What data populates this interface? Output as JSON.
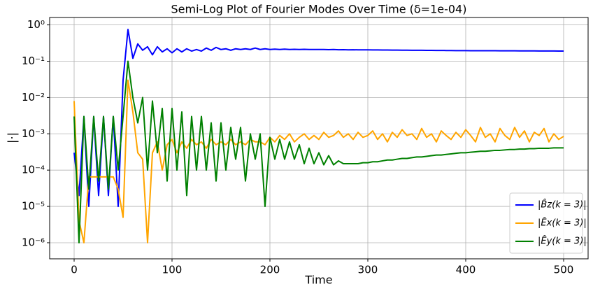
{
  "chart_data": {
    "type": "line",
    "title": "Semi-Log Plot of Fourier Modes Over Time (δ=1e-04)",
    "x_label": "Time",
    "y_label": "|·|",
    "log_y": true,
    "grid": true,
    "legend": "lower right",
    "xlim": [
      -25,
      525
    ],
    "xticks": [
      0,
      100,
      200,
      300,
      400,
      500
    ],
    "ylim": [
      3.6e-07,
      1.6
    ],
    "yticks": [
      {
        "value": 1,
        "label": "10⁰"
      },
      {
        "value": 0.1,
        "label": "10⁻¹"
      },
      {
        "value": 0.01,
        "label": "10⁻²"
      },
      {
        "value": 0.001,
        "label": "10⁻³"
      },
      {
        "value": 0.0001,
        "label": "10⁻⁴"
      },
      {
        "value": 1e-05,
        "label": "10⁻⁵"
      },
      {
        "value": 1e-06,
        "label": "10⁻⁶"
      }
    ],
    "x": [
      0,
      5,
      10,
      15,
      20,
      25,
      30,
      35,
      40,
      45,
      50,
      55,
      60,
      65,
      70,
      75,
      80,
      85,
      90,
      95,
      100,
      105,
      110,
      115,
      120,
      125,
      130,
      135,
      140,
      145,
      150,
      155,
      160,
      165,
      170,
      175,
      180,
      185,
      190,
      195,
      200,
      205,
      210,
      215,
      220,
      225,
      230,
      235,
      240,
      245,
      250,
      255,
      260,
      265,
      270,
      275,
      280,
      285,
      290,
      295,
      300,
      305,
      310,
      315,
      320,
      325,
      330,
      335,
      340,
      345,
      350,
      355,
      360,
      365,
      370,
      375,
      380,
      385,
      390,
      395,
      400,
      405,
      410,
      415,
      420,
      425,
      430,
      435,
      440,
      445,
      450,
      455,
      460,
      465,
      470,
      475,
      480,
      485,
      490,
      495,
      500
    ],
    "series": [
      {
        "name": "|B̂z(k = 3)|",
        "color": "#0000ff",
        "values": [
          0.0003,
          2e-05,
          0.003,
          1e-05,
          0.003,
          2e-05,
          0.003,
          2e-05,
          0.003,
          1e-05,
          0.03,
          0.75,
          0.12,
          0.3,
          0.2,
          0.25,
          0.15,
          0.25,
          0.18,
          0.22,
          0.17,
          0.22,
          0.18,
          0.22,
          0.19,
          0.21,
          0.19,
          0.23,
          0.2,
          0.24,
          0.21,
          0.22,
          0.2,
          0.22,
          0.21,
          0.22,
          0.21,
          0.23,
          0.21,
          0.22,
          0.21,
          0.215,
          0.21,
          0.215,
          0.21,
          0.212,
          0.21,
          0.212,
          0.21,
          0.21,
          0.21,
          0.21,
          0.208,
          0.21,
          0.207,
          0.208,
          0.206,
          0.207,
          0.205,
          0.206,
          0.205,
          0.204,
          0.204,
          0.203,
          0.203,
          0.202,
          0.202,
          0.201,
          0.201,
          0.2,
          0.2,
          0.2,
          0.199,
          0.199,
          0.198,
          0.198,
          0.197,
          0.197,
          0.196,
          0.196,
          0.196,
          0.195,
          0.195,
          0.195,
          0.194,
          0.194,
          0.194,
          0.193,
          0.193,
          0.193,
          0.193,
          0.192,
          0.192,
          0.192,
          0.192,
          0.191,
          0.191,
          0.191,
          0.191,
          0.19,
          0.19
        ]
      },
      {
        "name": "|Êx(k = 3)|",
        "color": "#ffa500",
        "values": [
          0.008,
          4e-06,
          1e-06,
          6.5e-05,
          6.5e-05,
          6.5e-05,
          6.5e-05,
          6.5e-05,
          6.5e-05,
          3e-05,
          5e-06,
          0.03,
          0.004,
          0.0003,
          0.0002,
          1e-06,
          0.0003,
          0.0006,
          0.0001,
          0.0005,
          0.0007,
          0.0003,
          0.0006,
          0.0004,
          0.0007,
          0.0005,
          0.0006,
          0.0004,
          0.0007,
          0.0005,
          0.0006,
          0.0005,
          0.0007,
          0.0005,
          0.0006,
          0.0005,
          0.0007,
          0.0006,
          0.0006,
          0.0005,
          0.0008,
          0.0006,
          0.0009,
          0.0007,
          0.001,
          0.0006,
          0.0008,
          0.001,
          0.0007,
          0.0009,
          0.0007,
          0.0011,
          0.0008,
          0.0009,
          0.0012,
          0.0008,
          0.001,
          0.0007,
          0.0011,
          0.0008,
          0.0009,
          0.0012,
          0.0007,
          0.001,
          0.0006,
          0.0011,
          0.0008,
          0.0013,
          0.0009,
          0.001,
          0.0007,
          0.0014,
          0.0008,
          0.001,
          0.0006,
          0.0012,
          0.0009,
          0.0007,
          0.0011,
          0.0008,
          0.0013,
          0.0009,
          0.0006,
          0.0015,
          0.0008,
          0.001,
          0.0006,
          0.0014,
          0.0009,
          0.0007,
          0.0015,
          0.0008,
          0.0012,
          0.0006,
          0.0011,
          0.0009,
          0.0014,
          0.0006,
          0.001,
          0.0007,
          0.00085
        ]
      },
      {
        "name": "|Êy(k = 3)|",
        "color": "#008000",
        "values": [
          0.003,
          1e-06,
          0.003,
          3e-05,
          0.003,
          5e-05,
          0.003,
          3e-05,
          0.003,
          0.0001,
          0.003,
          0.1,
          0.01,
          0.002,
          0.01,
          0.0001,
          0.008,
          0.0003,
          0.005,
          5e-05,
          0.005,
          0.0001,
          0.004,
          2e-05,
          0.003,
          0.0001,
          0.003,
          0.0001,
          0.002,
          5e-05,
          0.002,
          0.0001,
          0.0015,
          0.0002,
          0.0015,
          5e-05,
          0.001,
          0.0002,
          0.001,
          1e-05,
          0.0008,
          0.0002,
          0.0007,
          0.0002,
          0.0006,
          0.0002,
          0.0005,
          0.00015,
          0.0004,
          0.00015,
          0.0003,
          0.00014,
          0.00025,
          0.00014,
          0.00018,
          0.00015,
          0.00015,
          0.00015,
          0.00015,
          0.00016,
          0.00016,
          0.00017,
          0.00017,
          0.00018,
          0.00019,
          0.00019,
          0.0002,
          0.00021,
          0.00021,
          0.00022,
          0.00023,
          0.00023,
          0.00024,
          0.00025,
          0.00026,
          0.00026,
          0.00027,
          0.00028,
          0.00029,
          0.0003,
          0.0003,
          0.00031,
          0.00032,
          0.00033,
          0.00033,
          0.00034,
          0.00035,
          0.00035,
          0.00036,
          0.00037,
          0.00037,
          0.00038,
          0.00038,
          0.00039,
          0.00039,
          0.0004,
          0.0004,
          0.0004,
          0.00041,
          0.00041,
          0.00041
        ]
      }
    ]
  }
}
